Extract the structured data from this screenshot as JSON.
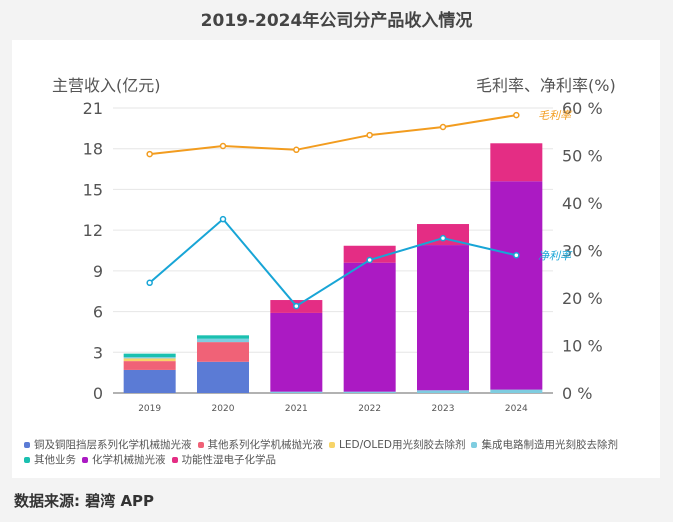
{
  "title": "2019-2024年公司分产品收入情况",
  "source": "数据来源: 碧湾 APP",
  "chart_data": {
    "type": "bar+line",
    "categories": [
      "2019",
      "2020",
      "2021",
      "2022",
      "2023",
      "2024"
    ],
    "ylabel_left": "主营收入(亿元)",
    "ylabel_right": "毛利率、净利率(%)",
    "ylim_left": [
      0,
      21
    ],
    "yticks_left": [
      "0",
      "3",
      "6",
      "9",
      "12",
      "15",
      "18",
      "21"
    ],
    "ylim_right": [
      0,
      60
    ],
    "yticks_right": [
      "0 %",
      "10 %",
      "20 %",
      "30 %",
      "40 %",
      "50 %",
      "60 %"
    ],
    "grid": true,
    "legend_position": "bottom",
    "series": [
      {
        "name": "铜及铜阻挡层系列化学机械抛光液",
        "color": "#5b7bd5",
        "values": [
          1.7,
          2.3,
          0,
          0,
          0,
          0
        ]
      },
      {
        "name": "其他系列化学机械抛光液",
        "color": "#f06277",
        "values": [
          0.65,
          1.45,
          0,
          0,
          0,
          0
        ]
      },
      {
        "name": "LED/OLED用光刻胶去除剂",
        "color": "#f7d468",
        "values": [
          0.2,
          0,
          0,
          0,
          0,
          0
        ]
      },
      {
        "name": "集成电路制造用光刻胶去除剂",
        "color": "#7fcde0",
        "values": [
          0.1,
          0.25,
          0.1,
          0.1,
          0.2,
          0.25
        ]
      },
      {
        "name": "其他业务",
        "color": "#1bc0b0",
        "values": [
          0.25,
          0.25,
          0,
          0,
          0,
          0
        ]
      },
      {
        "name": "化学机械抛光液",
        "color": "#ab1ac3",
        "values": [
          0,
          0,
          5.8,
          9.5,
          10.7,
          15.35
        ]
      },
      {
        "name": "功能性湿电子化学品",
        "color": "#e42d84",
        "values": [
          0,
          0,
          0.95,
          1.25,
          1.55,
          2.8
        ]
      }
    ],
    "lines": [
      {
        "name": "毛利率",
        "color": "#f29c1f",
        "values": [
          50.3,
          52.0,
          51.2,
          54.3,
          56.0,
          58.5
        ]
      },
      {
        "name": "净利率",
        "color": "#18a5d6",
        "values": [
          23.2,
          36.6,
          18.3,
          28.0,
          32.6,
          29.0
        ]
      }
    ]
  }
}
